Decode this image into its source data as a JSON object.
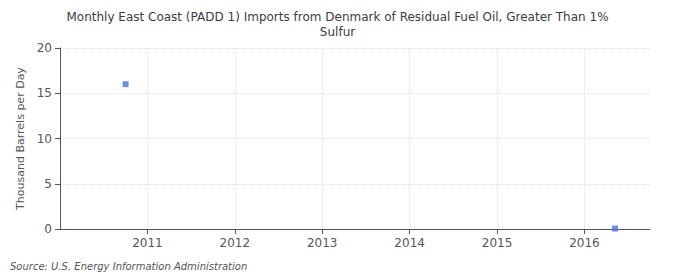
{
  "chart_data": {
    "type": "scatter",
    "title": "Monthly East Coast (PADD 1) Imports from Denmark of Residual Fuel Oil, Greater Than 1%\nSulfur",
    "ylabel": "Thousand Barrels per Day",
    "annotations": [
      "Source: U.S. Energy Information Administration"
    ],
    "x": [
      2010.75,
      2016.35
    ],
    "values": [
      16.0,
      0.05
    ],
    "marker": "square",
    "xlim": [
      2010.0,
      2016.75
    ],
    "xticks": [
      2011,
      2012,
      2013,
      2014,
      2015,
      2016
    ],
    "ylim": [
      0,
      20
    ],
    "yticks": [
      0,
      5,
      10,
      15,
      20
    ],
    "grid": true
  }
}
